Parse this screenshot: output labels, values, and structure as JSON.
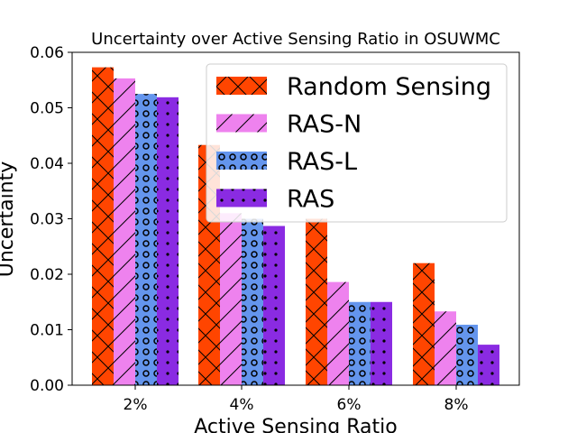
{
  "chart_data": {
    "type": "bar",
    "title": "Uncertainty over Active Sensing Ratio in OSUWMC",
    "xlabel": "Active Sensing Ratio",
    "ylabel": "Uncertainty",
    "categories": [
      "2%",
      "4%",
      "6%",
      "8%"
    ],
    "ylim": [
      0,
      0.06
    ],
    "yticks": [
      "0.00",
      "0.01",
      "0.02",
      "0.03",
      "0.04",
      "0.05",
      "0.06"
    ],
    "grid": false,
    "legend_position": "top-right",
    "series": [
      {
        "name": "Random Sensing",
        "values": [
          0.0573,
          0.0433,
          0.03,
          0.022
        ],
        "color": "#ff4500",
        "hatch": "cross"
      },
      {
        "name": "RAS-N",
        "values": [
          0.0553,
          0.031,
          0.0186,
          0.0133
        ],
        "color": "#ee82ee",
        "hatch": "slash"
      },
      {
        "name": "RAS-L",
        "values": [
          0.0525,
          0.03,
          0.015,
          0.0109
        ],
        "color": "#6495ed",
        "hatch": "circle"
      },
      {
        "name": "RAS",
        "values": [
          0.0519,
          0.0287,
          0.015,
          0.0073
        ],
        "color": "#8a2be2",
        "hatch": "dot"
      }
    ]
  }
}
